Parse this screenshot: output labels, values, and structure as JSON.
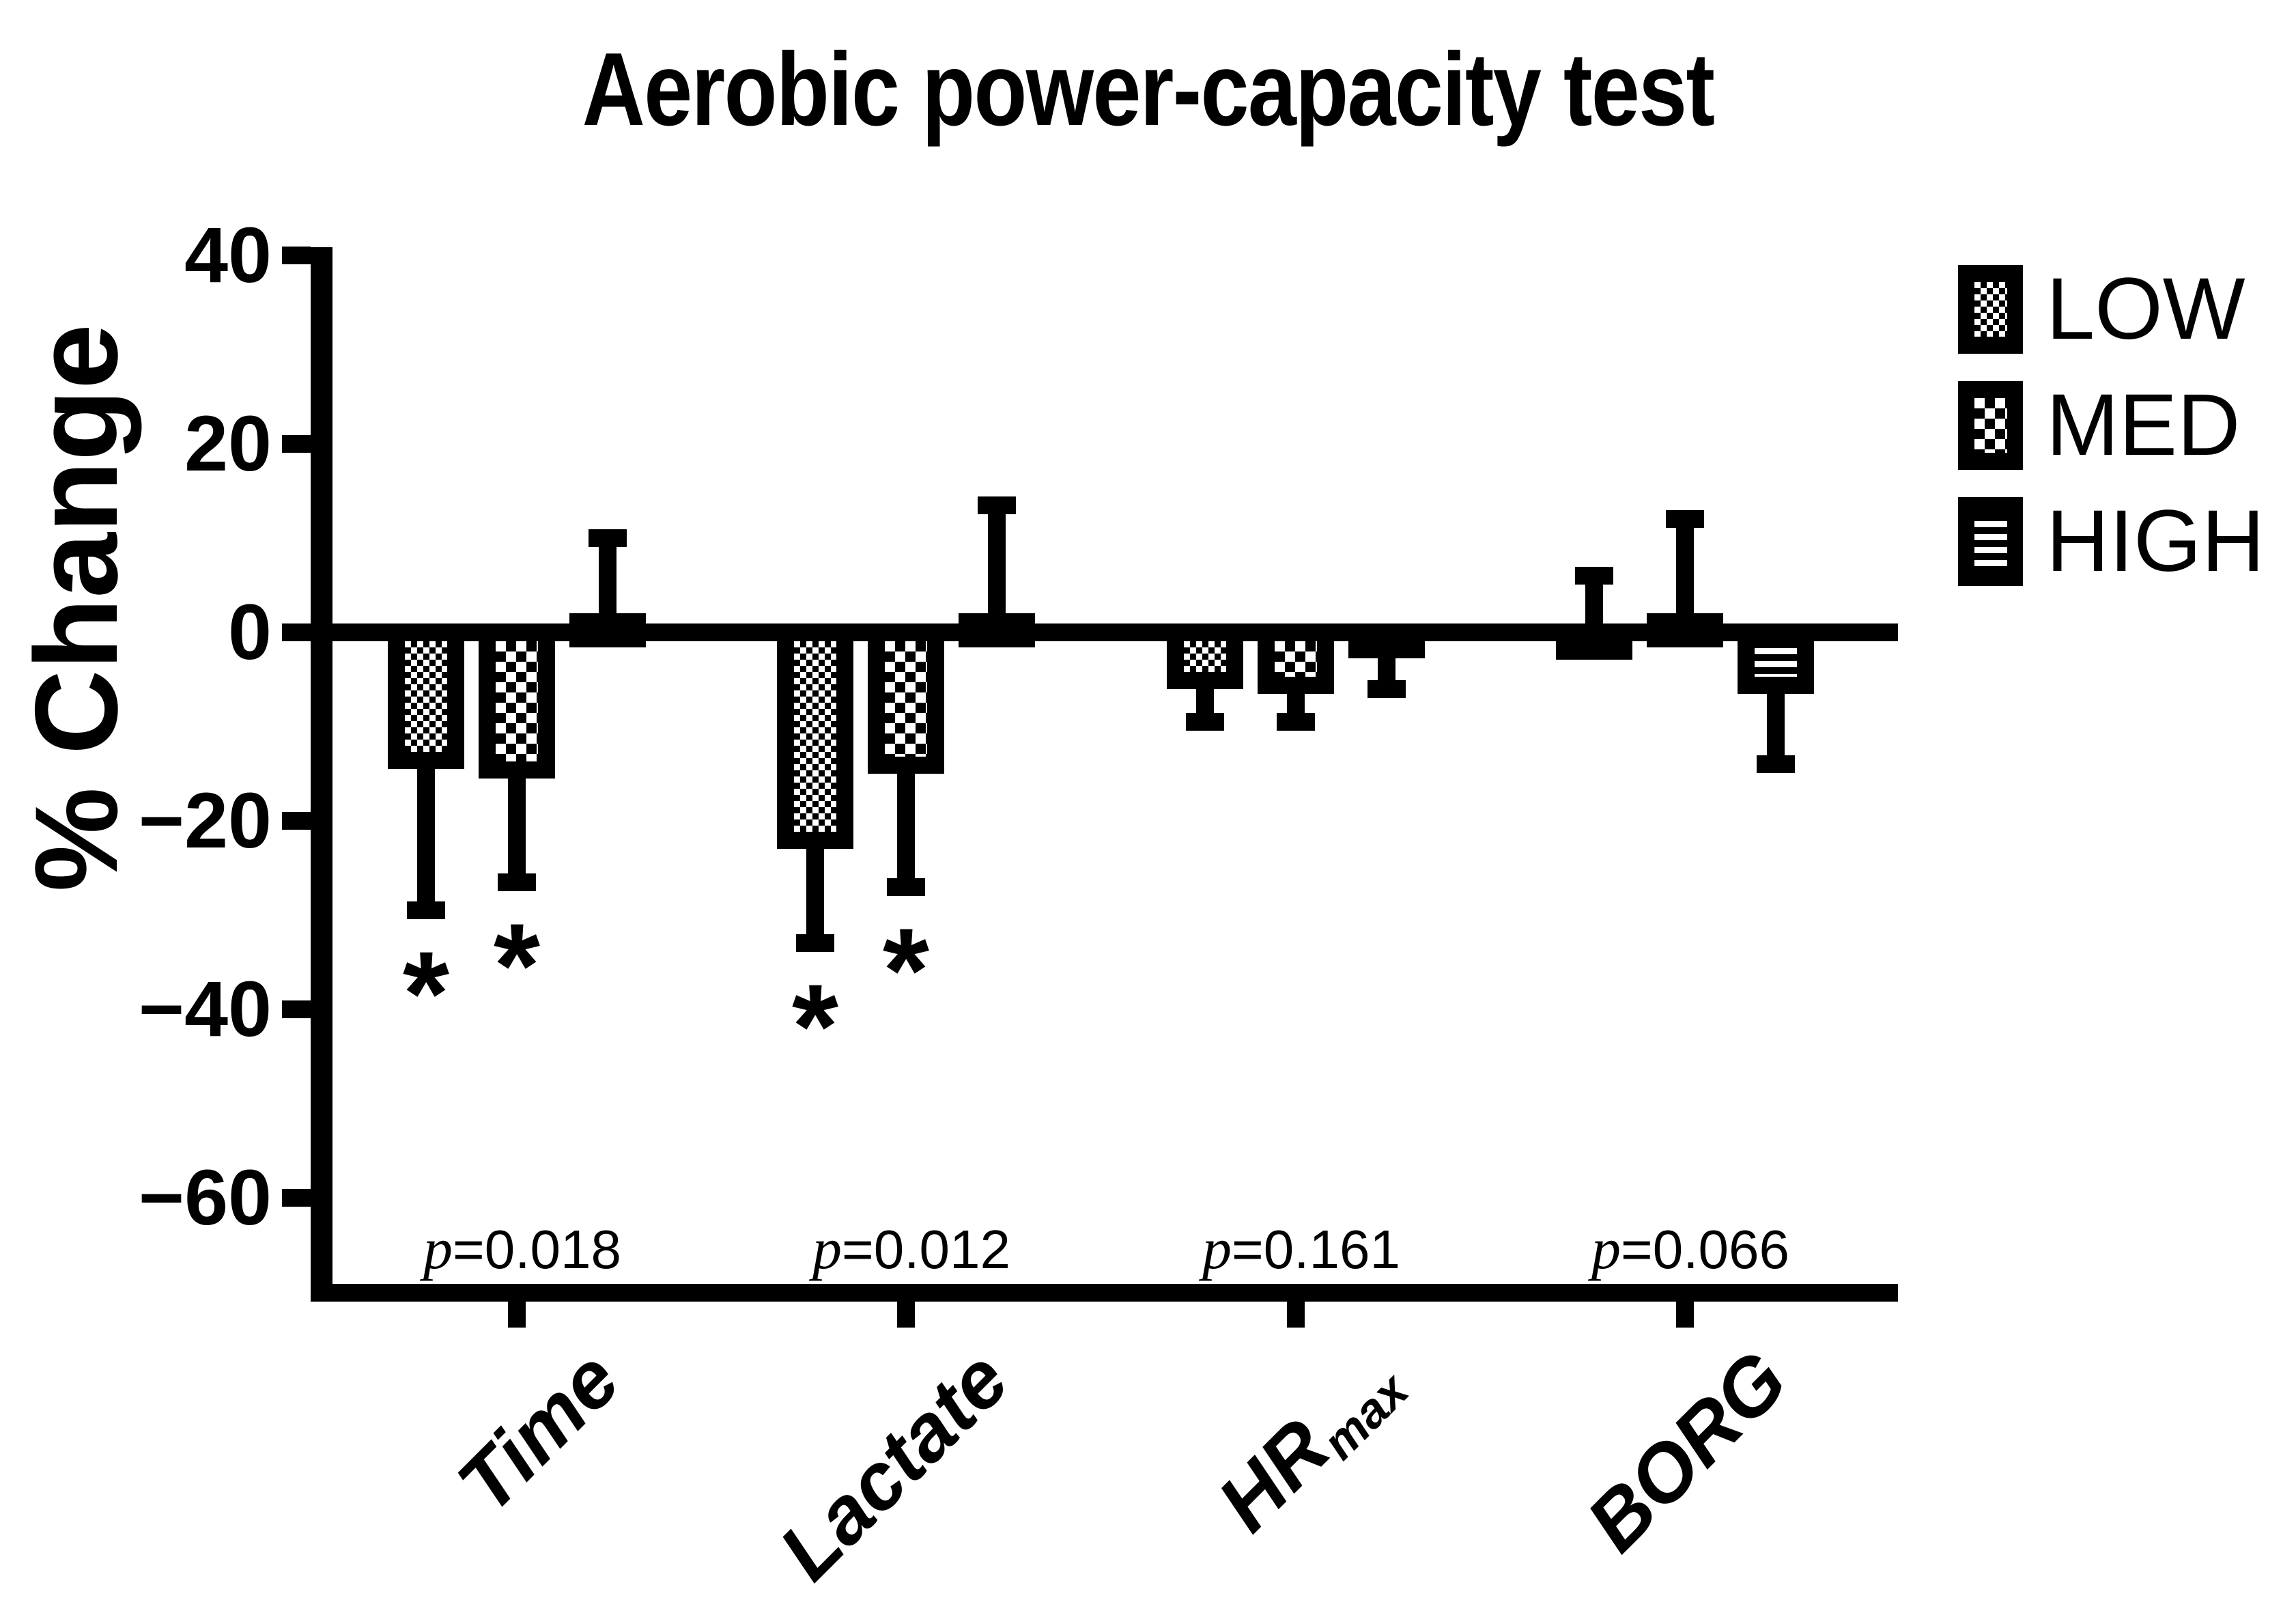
{
  "title": "Aerobic power-capacity test",
  "y_axis": {
    "label": "% Change",
    "tick_labels": [
      "40",
      "20",
      "0",
      "−20",
      "−40",
      "−60"
    ]
  },
  "legend": [
    {
      "label": "LOW",
      "pattern": "fine-checkerboard"
    },
    {
      "label": "MED",
      "pattern": "coarse-checkerboard"
    },
    {
      "label": "HIGH",
      "pattern": "horizontal-stripes"
    }
  ],
  "significance_marker": "*",
  "p_prefix": "p",
  "p_equals": "=",
  "chart_data": {
    "type": "bar",
    "title": "Aerobic power-capacity test",
    "ylabel": "% Change",
    "ylim": [
      -69,
      40
    ],
    "ytick_values": [
      40,
      20,
      0,
      -20,
      -40,
      -60
    ],
    "grid": false,
    "legend_position": "top-right",
    "error_bar_style": "one-sided outward whiskers with caps",
    "categories": [
      "Time",
      "Lactate",
      "HRmax",
      "BORG"
    ],
    "xlabels": [
      {
        "text": "Time"
      },
      {
        "text": "Lactate"
      },
      {
        "text": "HR",
        "sub": "max"
      },
      {
        "text": "BORG"
      }
    ],
    "p_values": [
      "0.018",
      "0.012",
      "0.161",
      "0.066"
    ],
    "series": [
      {
        "name": "LOW",
        "pattern": "fine-checkerboard",
        "values": [
          -14.5,
          -23,
          -6,
          0.7
        ],
        "errors": [
          15,
          10,
          3.5,
          5.3
        ],
        "significant": [
          true,
          true,
          false,
          false
        ]
      },
      {
        "name": "MED",
        "pattern": "coarse-checkerboard",
        "values": [
          -15.5,
          -15,
          -6.5,
          2
        ],
        "errors": [
          11,
          12,
          3,
          10
        ],
        "significant": [
          true,
          true,
          false,
          false
        ]
      },
      {
        "name": "HIGH",
        "pattern": "horizontal-stripes",
        "values": [
          2,
          2,
          -2.5,
          -6.5
        ],
        "errors": [
          8,
          11.5,
          3.5,
          7.5
        ],
        "significant": [
          false,
          false,
          false,
          false
        ]
      }
    ]
  }
}
